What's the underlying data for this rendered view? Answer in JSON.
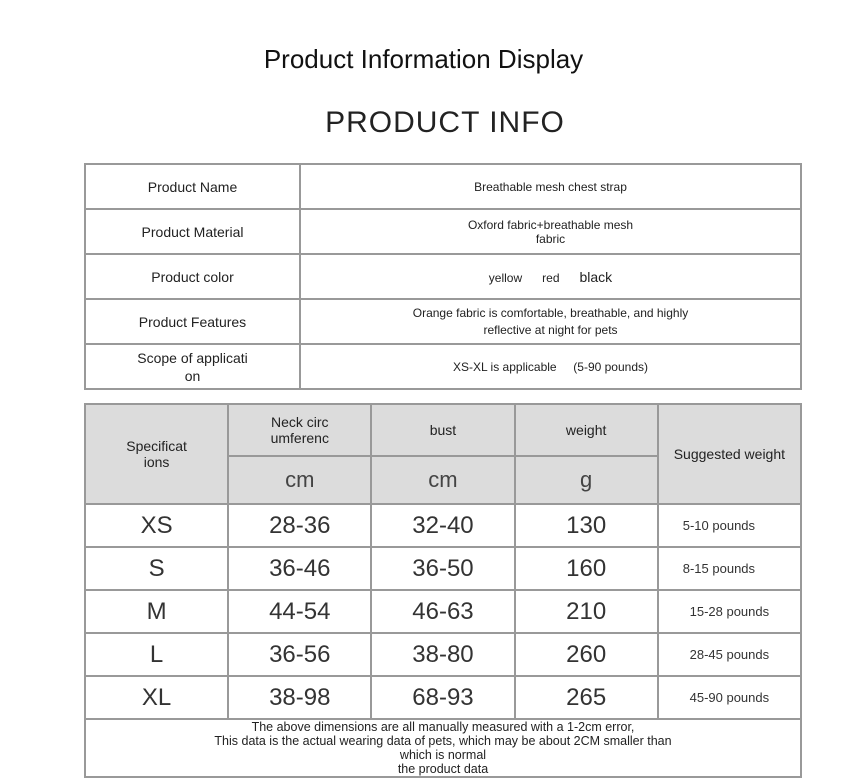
{
  "title": "Product Information Display",
  "subtitle": "PRODUCT INFO",
  "info": [
    {
      "label": "Product Name",
      "value": "Breathable mesh chest strap"
    },
    {
      "label": "Product Material",
      "value": "Oxford fabric+breathable mesh fabric"
    },
    {
      "label": "Product color",
      "colors": [
        "yellow",
        "red",
        "black"
      ]
    },
    {
      "label": "Product Features",
      "value": "Orange fabric is comfortable, breathable, and highly reflective at night for pets"
    },
    {
      "label": "Scope of applicati on",
      "value": "XS-XL is applicable",
      "value2": "(5-90 pounds)"
    }
  ],
  "size_table": {
    "headers": {
      "spec": "Specificat ions",
      "neck": "Neck circ umferenc",
      "bust": "bust",
      "weight": "weight",
      "suggested": "Suggested weight",
      "neck_unit": "cm",
      "bust_unit": "cm",
      "weight_unit": "g"
    },
    "rows": [
      {
        "size": "XS",
        "neck": "28-36",
        "bust": "32-40",
        "weight": "130",
        "suggested": "5-10 pounds"
      },
      {
        "size": "S",
        "neck": "36-46",
        "bust": "36-50",
        "weight": "160",
        "suggested": "8-15 pounds"
      },
      {
        "size": "M",
        "neck": "44-54",
        "bust": "46-63",
        "weight": "210",
        "suggested": "15-28 pounds"
      },
      {
        "size": "L",
        "neck": "36-56",
        "bust": "38-80",
        "weight": "260",
        "suggested": "28-45 pounds"
      },
      {
        "size": "XL",
        "neck": "38-98",
        "bust": "68-93",
        "weight": "265",
        "suggested": "45-90 pounds"
      }
    ],
    "note": [
      "The above dimensions are all manually measured with a 1-2cm error,",
      "This data is the actual wearing data of pets, which may be about 2CM smaller than",
      "which is normal",
      "the product data"
    ]
  }
}
